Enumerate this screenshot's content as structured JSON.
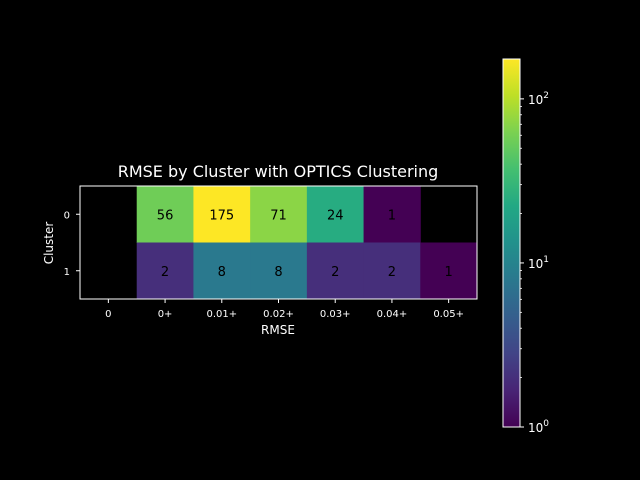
{
  "chart_data": {
    "type": "heatmap",
    "title": "RMSE by Cluster with OPTICS Clustering",
    "xlabel": "RMSE",
    "ylabel": "Cluster",
    "x_categories": [
      "0",
      "0+",
      "0.01+",
      "0.02+",
      "0.03+",
      "0.04+",
      "0.05+"
    ],
    "y_categories": [
      "0",
      "1"
    ],
    "values": [
      [
        null,
        56,
        175,
        71,
        24,
        1,
        null
      ],
      [
        null,
        2,
        8,
        8,
        2,
        2,
        1
      ]
    ],
    "colorscale": "viridis",
    "color_scale_type": "log",
    "color_range": [
      1,
      175
    ],
    "colorbar": {
      "ticks": [
        {
          "value": 1,
          "base": "10",
          "exp": "0"
        },
        {
          "value": 10,
          "base": "10",
          "exp": "1"
        },
        {
          "value": 100,
          "base": "10",
          "exp": "2"
        }
      ]
    },
    "background": "#000000",
    "text_color": "#ffffff",
    "cell_label_color": "#000000",
    "grid": false
  }
}
